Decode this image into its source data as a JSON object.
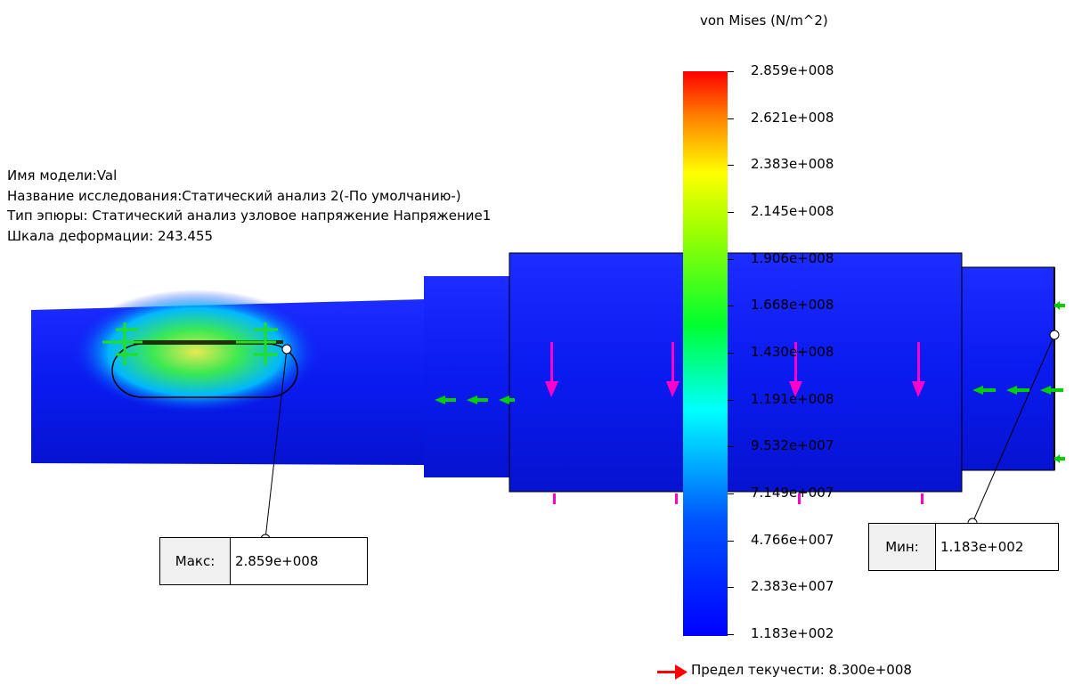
{
  "info": {
    "model_name": "Имя модели:Val",
    "study_name": "Название исследования:Статический анализ 2(-По умолчанию-)",
    "plot_type": "Тип эпюры: Статический анализ узловое напряжение Напряжение1",
    "deformation_scale": "Шкала деформации: 243.455"
  },
  "legend": {
    "title": "von Mises (N/m^2)",
    "ticks": [
      "2.859e+008",
      "2.621e+008",
      "2.383e+008",
      "2.145e+008",
      "1.906e+008",
      "1.668e+008",
      "1.430e+008",
      "1.191e+008",
      "9.532e+007",
      "7.149e+007",
      "4.766e+007",
      "2.383e+007",
      "1.183e+002"
    ],
    "colors": [
      "#ff0000",
      "#ffa500",
      "#ffff00",
      "#00ff00",
      "#00ffff",
      "#0000ff"
    ]
  },
  "max_callout": {
    "label": "Макс:",
    "value": "2.859e+008"
  },
  "min_callout": {
    "label": "Мин:",
    "value": "1.183e+002"
  },
  "yield": {
    "text": "Предел текучести: 8.300e+008",
    "arrow_color": "#ff0000"
  },
  "colors": {
    "shaft_blue": "#0a1bf0",
    "load_arrow": "#ff00cc",
    "fixture_arrow": "#00d000"
  }
}
